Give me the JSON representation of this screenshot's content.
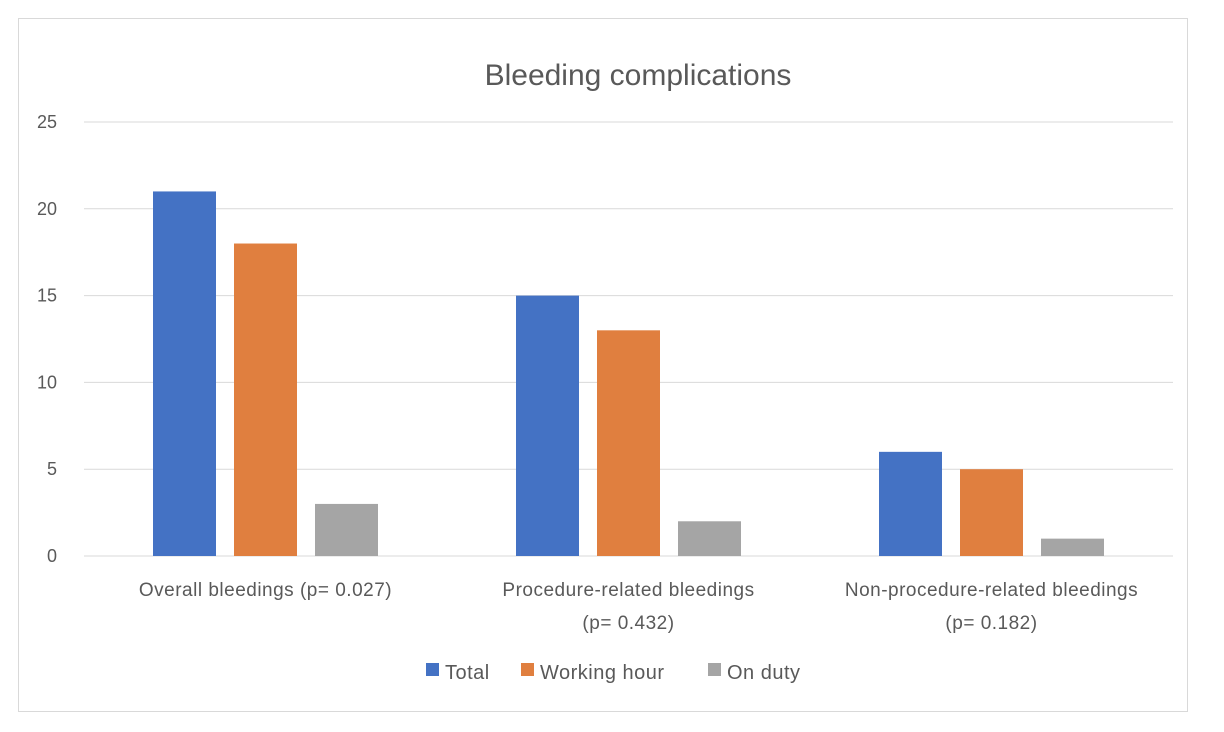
{
  "figure_caption": "",
  "chart_data": {
    "type": "bar",
    "title": "Bleeding complications",
    "xlabel": "",
    "ylabel": "",
    "ylim": [
      0,
      25
    ],
    "yticks": [
      0,
      5,
      10,
      15,
      20,
      25
    ],
    "grid": true,
    "legend_position": "bottom",
    "categories": [
      [
        "Overall bleedings (p= 0.027)"
      ],
      [
        "Procedure-related bleedings",
        "(p= 0.432)"
      ],
      [
        "Non-procedure-related bleedings",
        "(p= 0.182)"
      ]
    ],
    "series": [
      {
        "name": "Total",
        "color": "#4472c4",
        "values": [
          21,
          15,
          6
        ]
      },
      {
        "name": "Working hour",
        "color": "#e07f3f",
        "values": [
          18,
          13,
          5
        ]
      },
      {
        "name": "On duty",
        "color": "#a5a5a5",
        "values": [
          3,
          2,
          1
        ]
      }
    ]
  }
}
